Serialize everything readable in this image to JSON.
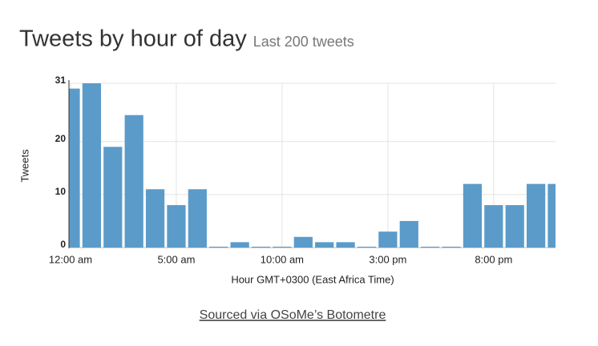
{
  "chart_data": {
    "type": "bar",
    "title": "Tweets by hour of day",
    "subtitle": "Last 200 tweets",
    "x_label": "Hour GMT+0300 (East Africa Time)",
    "y_label": "Tweets",
    "x": [
      0,
      1,
      2,
      3,
      4,
      5,
      6,
      7,
      8,
      9,
      10,
      11,
      12,
      13,
      14,
      15,
      16,
      17,
      18,
      19,
      20,
      21,
      22,
      23
    ],
    "values": [
      30,
      31,
      19,
      25,
      11,
      8,
      11,
      0,
      1,
      0,
      0,
      2,
      1,
      1,
      0,
      3,
      5,
      0,
      0,
      12,
      8,
      8,
      12,
      12
    ],
    "color": "#5b9bc9",
    "xlim": [
      0,
      23
    ],
    "xticks": [
      {
        "value": 0,
        "label": "12:00 am"
      },
      {
        "value": 5,
        "label": "5:00 am"
      },
      {
        "value": 10,
        "label": "10:00 am"
      },
      {
        "value": 15,
        "label": "3:00 pm"
      },
      {
        "value": 20,
        "label": "8:00 pm"
      }
    ],
    "ylim": [
      0,
      31
    ],
    "yticks": [
      0,
      10,
      20,
      31
    ],
    "grid": true
  },
  "source": "Sourced via OSoMe’s Botometre"
}
